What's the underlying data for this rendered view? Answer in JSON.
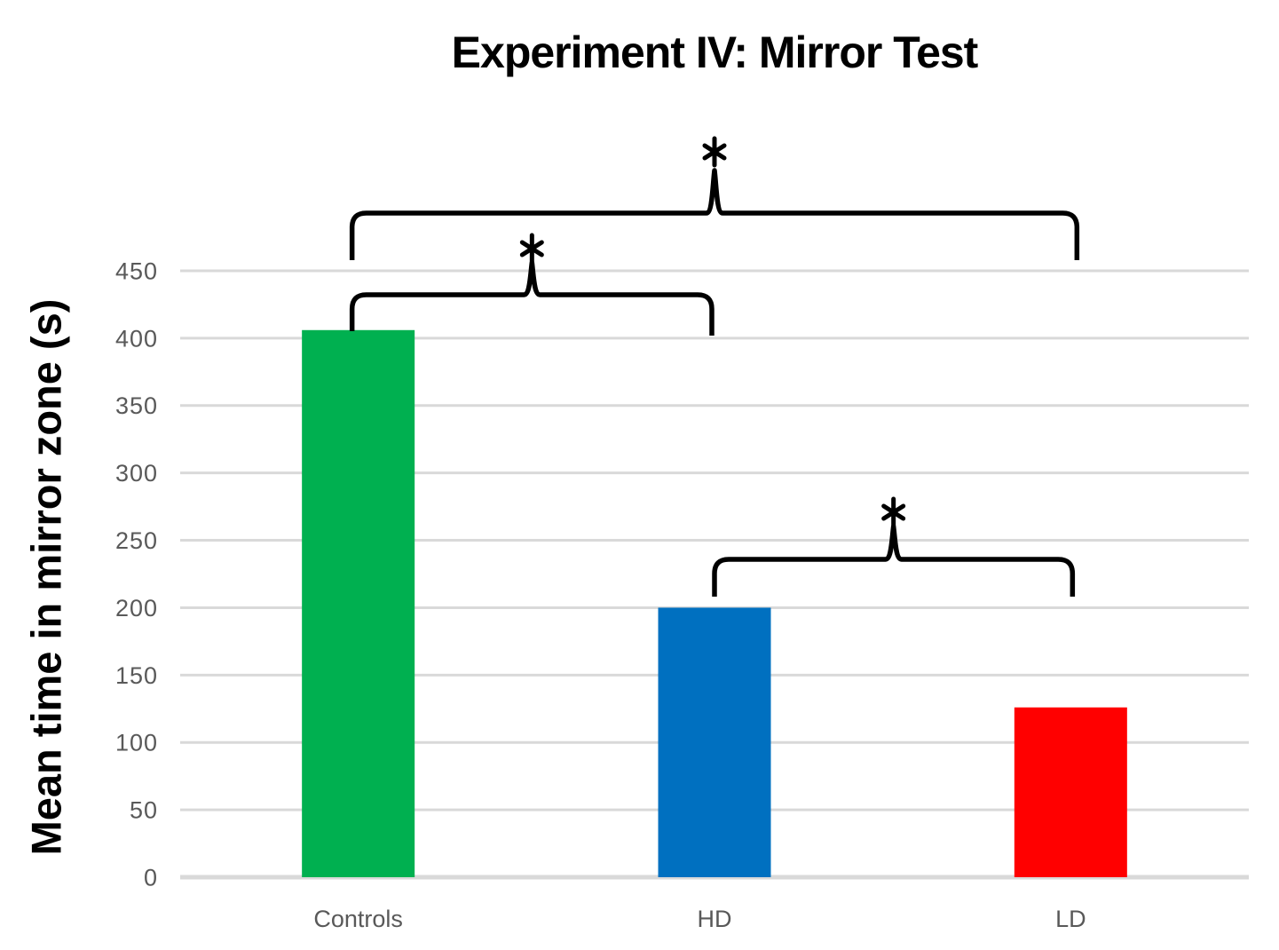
{
  "page": {
    "background": "#FFFFFF"
  },
  "chart_data": {
    "type": "bar",
    "title": "Experiment IV: Mirror Test",
    "ylabel": "Mean time in mirror zone (s)",
    "xlabel": "",
    "categories": [
      "Controls",
      "HD",
      "LD"
    ],
    "values": [
      406,
      200,
      126
    ],
    "bar_colors": [
      "#00B050",
      "#0070C0",
      "#FF0000"
    ],
    "ylim": [
      0,
      450
    ],
    "ytick_step": 50,
    "yticks": [
      0,
      50,
      100,
      150,
      200,
      250,
      300,
      350,
      400,
      450
    ],
    "grid": true,
    "gridline_color": "#D9D9D9",
    "axis_text_color": "#595959",
    "bracket_color": "#000000",
    "legend": "none",
    "significance_brackets": [
      {
        "groups": [
          "Controls",
          "LD"
        ],
        "label": "*"
      },
      {
        "groups": [
          "Controls",
          "HD"
        ],
        "label": "*"
      },
      {
        "groups": [
          "HD",
          "LD"
        ],
        "label": "*"
      }
    ]
  }
}
